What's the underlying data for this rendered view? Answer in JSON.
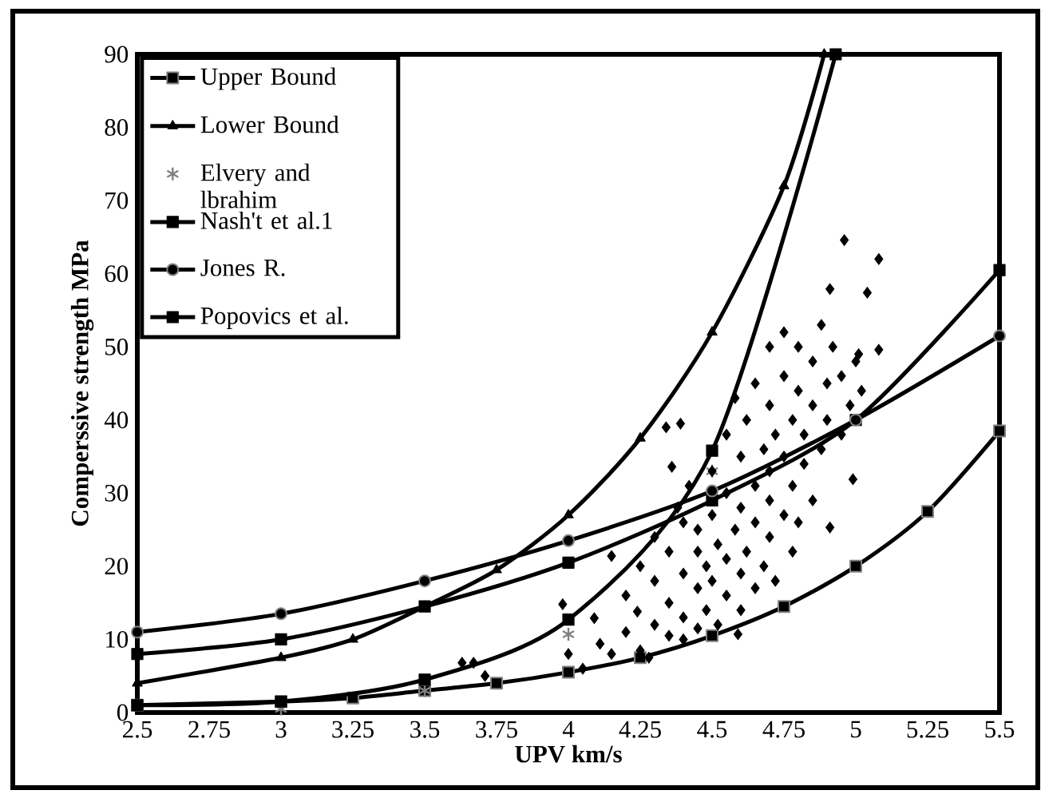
{
  "chart_data": {
    "type": "line",
    "xlabel": "UPV km/s",
    "ylabel": "Comperssive  strength MPa",
    "xlim": [
      2.5,
      5.5
    ],
    "ylim": [
      0,
      90
    ],
    "xticks": [
      2.5,
      2.75,
      3,
      3.25,
      3.5,
      3.75,
      4,
      4.25,
      4.5,
      4.75,
      5,
      5.25,
      5.5
    ],
    "yticks": [
      0,
      10,
      20,
      30,
      40,
      50,
      60,
      70,
      80,
      90
    ],
    "grid": false,
    "legend": "top left",
    "series": [
      {
        "name": "Upper Bound",
        "color": "#000000",
        "marker": "square",
        "x": [
          2.5,
          3,
          3.25,
          3.5,
          3.75,
          4,
          4.25,
          4.5,
          4.75,
          5,
          5.25,
          5.5
        ],
        "values": [
          1,
          1.5,
          2,
          3,
          4,
          5.5,
          7.5,
          10.5,
          14.5,
          20,
          27.5,
          38.5
        ]
      },
      {
        "name": "Lower Bound",
        "color": "#000000",
        "marker": "triangle",
        "x": [
          2.5,
          3,
          3.25,
          3.5,
          3.75,
          4,
          4.25,
          4.5,
          4.75,
          4.89
        ],
        "values": [
          4,
          7.5,
          10,
          14.5,
          19.5,
          27,
          37.5,
          52,
          72,
          90
        ]
      },
      {
        "name": "Elvery and lbrahim",
        "type": "scatter",
        "color": "#808080",
        "marker": "cross",
        "x": [
          3,
          3.5,
          4,
          4.5
        ],
        "values": [
          0.5,
          3,
          10.7,
          33
        ]
      },
      {
        "name": "Nash't et al.1",
        "color": "#000000",
        "marker": "square",
        "x": [
          2.5,
          3,
          3.5,
          4,
          4.5,
          5,
          5.5
        ],
        "values": [
          8,
          10,
          14.5,
          20.5,
          29,
          40,
          60.5
        ]
      },
      {
        "name": "Jones R.",
        "color": "#000000",
        "marker": "circle",
        "x": [
          2.5,
          3,
          3.5,
          4,
          4.5,
          5,
          5.5
        ],
        "values": [
          11,
          13.5,
          18,
          23.5,
          30.3,
          40,
          51.5
        ]
      },
      {
        "name": "Popovics et al.",
        "color": "#000000",
        "marker": "square",
        "x": [
          2.5,
          3,
          3.5,
          4,
          4.5,
          4.93
        ],
        "values": [
          1,
          1.5,
          4.5,
          12.7,
          35.8,
          90
        ]
      },
      {
        "type": "scatter",
        "color": "#000000",
        "marker": "diamond",
        "x": [
          3.63,
          3.67,
          3.71,
          3.98,
          4.0,
          4.05,
          4.09,
          4.11,
          4.15,
          4.15,
          4.2,
          4.2,
          4.24,
          4.25,
          4.28,
          4.3,
          4.3,
          4.3,
          4.34,
          4.36,
          4.39,
          4.35,
          4.35,
          4.38,
          4.4,
          4.4,
          4.4,
          4.4,
          4.42,
          4.45,
          4.45,
          4.45,
          4.48,
          4.48,
          4.5,
          4.5,
          4.5,
          4.52,
          4.52,
          4.55,
          4.55,
          4.55,
          4.55,
          4.58,
          4.58,
          4.59,
          4.6,
          4.6,
          4.6,
          4.6,
          4.62,
          4.62,
          4.65,
          4.65,
          4.65,
          4.65,
          4.68,
          4.68,
          4.7,
          4.7,
          4.7,
          4.7,
          4.7,
          4.72,
          4.72,
          4.75,
          4.75,
          4.75,
          4.75,
          4.78,
          4.78,
          4.78,
          4.8,
          4.8,
          4.8,
          4.82,
          4.82,
          4.85,
          4.85,
          4.85,
          4.88,
          4.88,
          4.9,
          4.9,
          4.91,
          4.92,
          4.95,
          4.95,
          4.96,
          4.98,
          4.99,
          5.0,
          5.01,
          5.04,
          5.08,
          5.08,
          4.91,
          5.02,
          4.25,
          4.35,
          4.45
        ],
        "values": [
          6.8,
          6.8,
          5.0,
          14.8,
          8,
          6,
          12.9,
          9.4,
          21.4,
          8,
          11,
          16,
          13.8,
          20,
          7.5,
          12,
          18,
          24,
          39,
          33.6,
          39.5,
          15,
          22,
          28,
          10,
          13,
          19,
          26,
          31,
          17,
          22,
          25,
          14,
          20,
          18,
          27,
          33,
          12,
          23,
          16,
          21,
          30,
          38,
          25,
          43,
          10.7,
          14,
          19,
          28,
          35,
          22,
          40,
          17,
          26,
          31,
          45,
          20,
          36,
          24,
          29,
          33,
          42,
          50,
          18,
          38,
          27,
          35,
          46,
          52,
          22,
          31,
          40,
          26,
          44,
          50,
          34,
          38,
          29,
          42,
          48,
          36,
          53,
          40,
          45,
          25.3,
          50,
          38,
          46,
          64.6,
          42,
          31.9,
          48,
          49,
          57.4,
          62,
          49.6,
          57.9,
          44,
          8.5,
          10.5,
          11.5
        ]
      }
    ]
  }
}
